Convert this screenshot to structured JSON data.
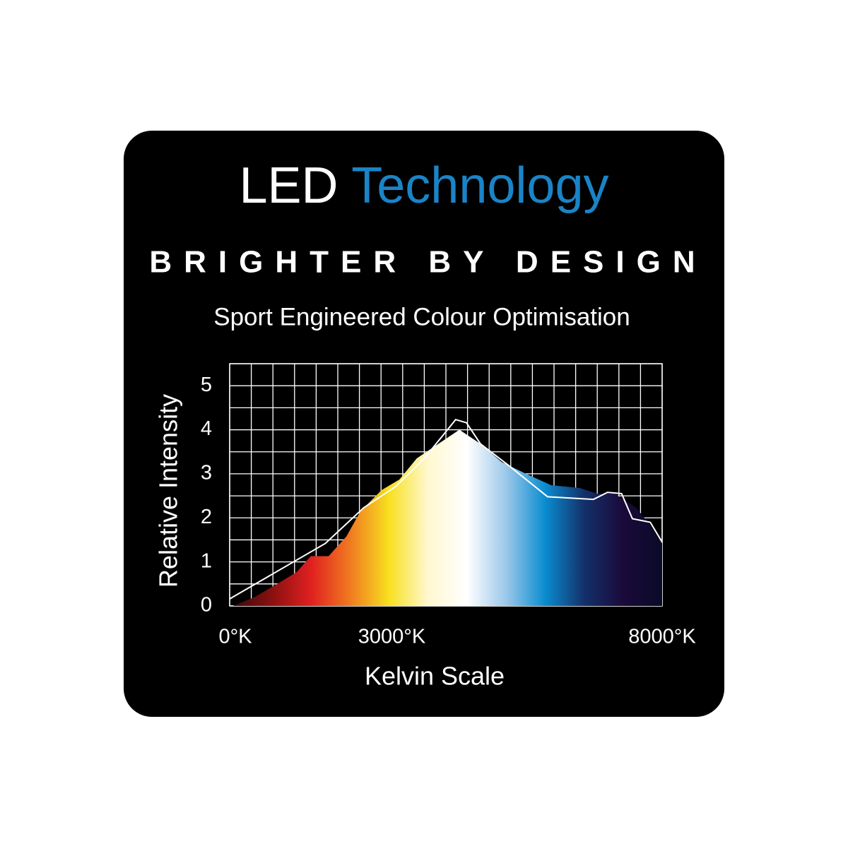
{
  "chart_data": {
    "type": "area",
    "title": [
      "LED",
      "Technology"
    ],
    "tagline": "BRIGHTER BY DESIGN",
    "subtitle": "Sport Engineered Colour Optimisation",
    "ylabel": "Relative Intensity",
    "xlabel": "Kelvin Scale",
    "xlim": [
      0,
      8000
    ],
    "ylim": [
      0,
      5.5
    ],
    "xticks": [
      {
        "value": 0,
        "label": "0°K"
      },
      {
        "value": 3000,
        "label": "3000°K"
      },
      {
        "value": 8000,
        "label": "8000°K"
      }
    ],
    "yticks": [
      0,
      1,
      2,
      3,
      4,
      5
    ],
    "grid": true,
    "xgrid_step": 400,
    "ygrid_step": 0.5,
    "series": [
      {
        "colors": [
          "#3a0a0a",
          "#8a1010",
          "#e02020",
          "#f07a20",
          "#f8e020",
          "#fff8d0",
          "#ffffff",
          "#9cc8ea",
          "#0a8cd0",
          "#14306a",
          "#1a0a3a",
          "#0a0a28"
        ],
        "x": [
          60,
          460,
          920,
          1240,
          1500,
          1830,
          2160,
          2420,
          2810,
          3140,
          3460,
          3860,
          4250,
          4640,
          5030,
          5430,
          5950,
          6470,
          6800,
          7120,
          7520,
          7840,
          8000
        ],
        "values": [
          0,
          0.2,
          0.53,
          0.77,
          1.13,
          1.13,
          1.58,
          2.15,
          2.63,
          2.87,
          3.35,
          3.68,
          4.0,
          3.68,
          3.27,
          3.03,
          2.74,
          2.68,
          2.55,
          2.55,
          2.23,
          1.74,
          1.42
        ]
      },
      {
        "color": "#ffffff",
        "x": [
          0,
          1770,
          2480,
          3070,
          3600,
          4180,
          4380,
          4640,
          5160,
          5880,
          6730,
          6990,
          7250,
          7450,
          7780,
          8000
        ],
        "values": [
          0.16,
          1.42,
          2.23,
          2.71,
          3.35,
          4.23,
          4.16,
          3.68,
          3.19,
          2.48,
          2.42,
          2.58,
          2.55,
          1.98,
          1.9,
          1.45
        ]
      }
    ]
  }
}
